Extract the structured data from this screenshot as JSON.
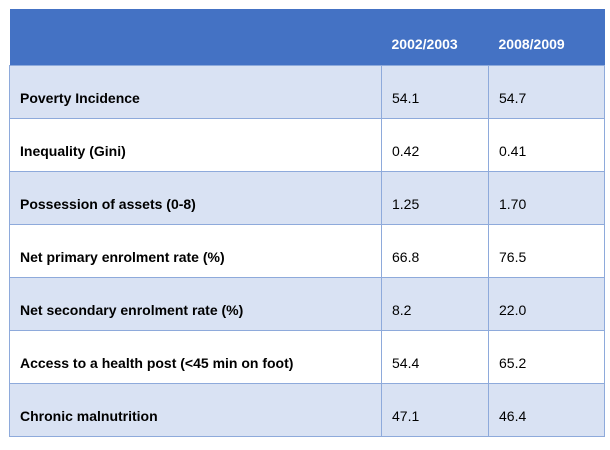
{
  "chart_data": {
    "type": "table",
    "columns": [
      "",
      "2002/2003",
      "2008/2009"
    ],
    "rows": [
      {
        "label": "Poverty Incidence",
        "values": [
          "54.1",
          "54.7"
        ]
      },
      {
        "label": "Inequality (Gini)",
        "values": [
          "0.42",
          "0.41"
        ]
      },
      {
        "label": "Possession of assets (0-8)",
        "values": [
          "1.25",
          "1.70"
        ]
      },
      {
        "label": "Net primary enrolment rate (%)",
        "values": [
          "66.8",
          "76.5"
        ]
      },
      {
        "label": "Net secondary enrolment rate (%)",
        "values": [
          "8.2",
          "22.0"
        ]
      },
      {
        "label": "Access to a health post (<45 min on foot)",
        "values": [
          "54.4",
          "65.2"
        ]
      },
      {
        "label": "Chronic malnutrition",
        "values": [
          "47.1",
          "46.4"
        ]
      }
    ],
    "header_color": "#4472c4",
    "band_color": "#d9e2f3",
    "border_color": "#8eaadb"
  }
}
